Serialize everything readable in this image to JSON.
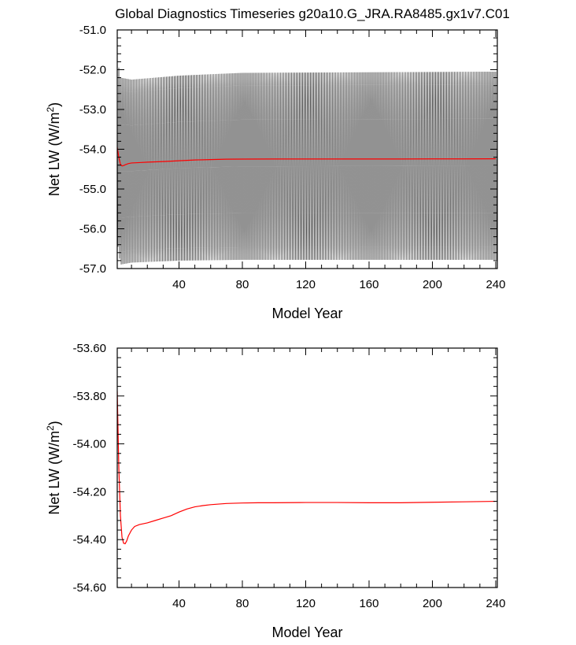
{
  "title": "Global Diagnostics Timeseries g20a10.G_JRA.RA8485.gx1v7.C01",
  "chart_data": [
    {
      "type": "line",
      "panel": "top",
      "xlabel": "Model Year",
      "ylabel": "Net LW (W/m²)",
      "ylabel_base": "Net LW (W/m",
      "ylabel_sup": "2",
      "ylabel_end": ")",
      "xlim": [
        1,
        241
      ],
      "ylim": [
        -57.0,
        -51.0
      ],
      "xticks": [
        40,
        80,
        120,
        160,
        200,
        240
      ],
      "yticks": [
        -57.0,
        -56.0,
        -55.0,
        -54.0,
        -53.0,
        -52.0,
        -51.0
      ],
      "ytick_labels": [
        "-57.0",
        "-56.0",
        "-55.0",
        "-54.0",
        "-53.0",
        "-52.0",
        "-51.0"
      ],
      "series": [
        {
          "kind": "monthly-oscillation",
          "color": "#000000",
          "envelope_max": [
            [
              1,
              -51.7
            ],
            [
              3,
              -52.2
            ],
            [
              10,
              -52.25
            ],
            [
              40,
              -52.15
            ],
            [
              80,
              -52.08
            ],
            [
              240,
              -52.05
            ]
          ],
          "envelope_min": [
            [
              1,
              -56.3
            ],
            [
              3,
              -56.9
            ],
            [
              10,
              -56.85
            ],
            [
              40,
              -56.8
            ],
            [
              80,
              -56.78
            ],
            [
              240,
              -56.78
            ]
          ]
        },
        {
          "kind": "annual-mean",
          "color": "#ff0000",
          "x": [
            1,
            2,
            3,
            4,
            5,
            6,
            8,
            10,
            15,
            20,
            30,
            40,
            50,
            60,
            70,
            80,
            100,
            120,
            140,
            160,
            180,
            200,
            220,
            240
          ],
          "y": [
            -53.95,
            -54.2,
            -54.38,
            -54.42,
            -54.41,
            -54.39,
            -54.36,
            -54.345,
            -54.335,
            -54.325,
            -54.31,
            -54.29,
            -54.27,
            -54.26,
            -54.25,
            -54.248,
            -54.245,
            -54.245,
            -54.245,
            -54.245,
            -54.245,
            -54.243,
            -54.242,
            -54.24
          ]
        }
      ]
    },
    {
      "type": "line",
      "panel": "bottom",
      "xlabel": "Model Year",
      "ylabel": "Net LW (W/m²)",
      "ylabel_base": "Net LW (W/m",
      "ylabel_sup": "2",
      "ylabel_end": ")",
      "xlim": [
        1,
        241
      ],
      "ylim": [
        -54.6,
        -53.6
      ],
      "xticks": [
        40,
        80,
        120,
        160,
        200,
        240
      ],
      "yticks": [
        -54.6,
        -54.4,
        -54.2,
        -54.0,
        -53.8,
        -53.6
      ],
      "ytick_labels": [
        "-54.60",
        "-54.40",
        "-54.20",
        "-54.00",
        "-53.80",
        "-53.60"
      ],
      "series": [
        {
          "kind": "annual-mean",
          "color": "#ff0000",
          "x": [
            1,
            2,
            3,
            4,
            5,
            6,
            7,
            8,
            10,
            12,
            15,
            20,
            25,
            30,
            35,
            40,
            45,
            50,
            55,
            60,
            70,
            80,
            90,
            100,
            120,
            140,
            160,
            180,
            200,
            220,
            240
          ],
          "y": [
            -53.78,
            -54.1,
            -54.3,
            -54.39,
            -54.415,
            -54.417,
            -54.405,
            -54.385,
            -54.36,
            -54.345,
            -54.337,
            -54.33,
            -54.32,
            -54.31,
            -54.3,
            -54.285,
            -54.272,
            -54.263,
            -54.258,
            -54.254,
            -54.249,
            -54.247,
            -54.246,
            -54.246,
            -54.245,
            -54.245,
            -54.246,
            -54.246,
            -54.244,
            -54.242,
            -54.24
          ]
        }
      ]
    }
  ]
}
